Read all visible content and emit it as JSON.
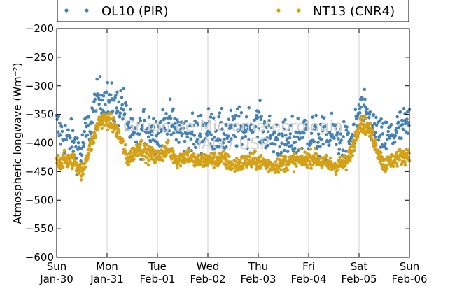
{
  "chart_data": {
    "type": "scatter",
    "title": "",
    "xlabel": "",
    "ylabel": "Atmospheric longwave (Wm⁻²)",
    "ylim": [
      -600,
      -200
    ],
    "yticks": [
      -200,
      -250,
      -300,
      -350,
      -400,
      -450,
      -500,
      -550,
      -600
    ],
    "xlim": [
      "2011-01-30",
      "2011-02-06"
    ],
    "xtick_labels": [
      {
        "day": "Sun",
        "date": "Jan-30"
      },
      {
        "day": "Mon",
        "date": "Jan-31"
      },
      {
        "day": "Tue",
        "date": "Feb-01"
      },
      {
        "day": "Wed",
        "date": "Feb-02"
      },
      {
        "day": "Thu",
        "date": "Feb-03"
      },
      {
        "day": "Fri",
        "date": "Feb-04"
      },
      {
        "day": "Sat",
        "date": "Feb-05"
      },
      {
        "day": "Sun",
        "date": "Feb-06"
      }
    ],
    "grid": "vertical",
    "legend_position": "top",
    "watermark": [
      "Grupo de Micrometeorologia",
      "IAG / USP"
    ],
    "series": [
      {
        "name": "OL10 (PIR)",
        "color": "#4682b4",
        "profile_x_days": [
          0.0,
          0.1,
          0.3,
          0.5,
          0.55,
          0.65,
          0.75,
          0.85,
          1.0,
          1.15,
          1.3,
          1.4,
          1.5,
          1.6,
          1.75,
          2.0,
          2.2,
          2.4,
          2.6,
          3.0,
          3.3,
          3.6,
          4.0,
          4.3,
          4.6,
          4.9,
          5.1,
          5.3,
          5.5,
          5.75,
          5.9,
          6.0,
          6.2,
          6.4,
          6.6,
          6.8,
          7.0
        ],
        "profile_y": [
          -370,
          -385,
          -400,
          -415,
          -390,
          -370,
          -340,
          -320,
          -325,
          -340,
          -330,
          -360,
          -390,
          -395,
          -370,
          -380,
          -365,
          -375,
          -390,
          -375,
          -385,
          -375,
          -370,
          -390,
          -400,
          -380,
          -385,
          -395,
          -385,
          -405,
          -390,
          -340,
          -360,
          -395,
          -390,
          -375,
          -370
        ],
        "spread": 18,
        "n_points": 700
      },
      {
        "name": "NT13 (CNR4)",
        "color": "#d4a017",
        "profile_x_days": [
          0.0,
          0.2,
          0.35,
          0.45,
          0.5,
          0.55,
          0.6,
          0.7,
          0.85,
          1.0,
          1.15,
          1.3,
          1.4,
          1.5,
          1.65,
          1.8,
          2.0,
          2.2,
          2.4,
          2.6,
          2.75,
          3.0,
          3.3,
          3.5,
          3.8,
          4.0,
          4.3,
          4.5,
          4.7,
          4.9,
          5.1,
          5.3,
          5.5,
          5.75,
          5.9,
          6.0,
          6.15,
          6.25,
          6.4,
          6.5,
          6.6,
          6.8,
          7.0
        ],
        "profile_y": [
          -432,
          -430,
          -432,
          -445,
          -450,
          -440,
          -420,
          -400,
          -360,
          -360,
          -370,
          -400,
          -430,
          -420,
          -405,
          -420,
          -425,
          -410,
          -430,
          -420,
          -432,
          -430,
          -428,
          -440,
          -432,
          -432,
          -440,
          -435,
          -432,
          -430,
          -425,
          -435,
          -440,
          -435,
          -400,
          -365,
          -370,
          -385,
          -420,
          -440,
          -432,
          -425,
          -420
        ],
        "spread": 7,
        "n_points": 1100
      }
    ]
  }
}
